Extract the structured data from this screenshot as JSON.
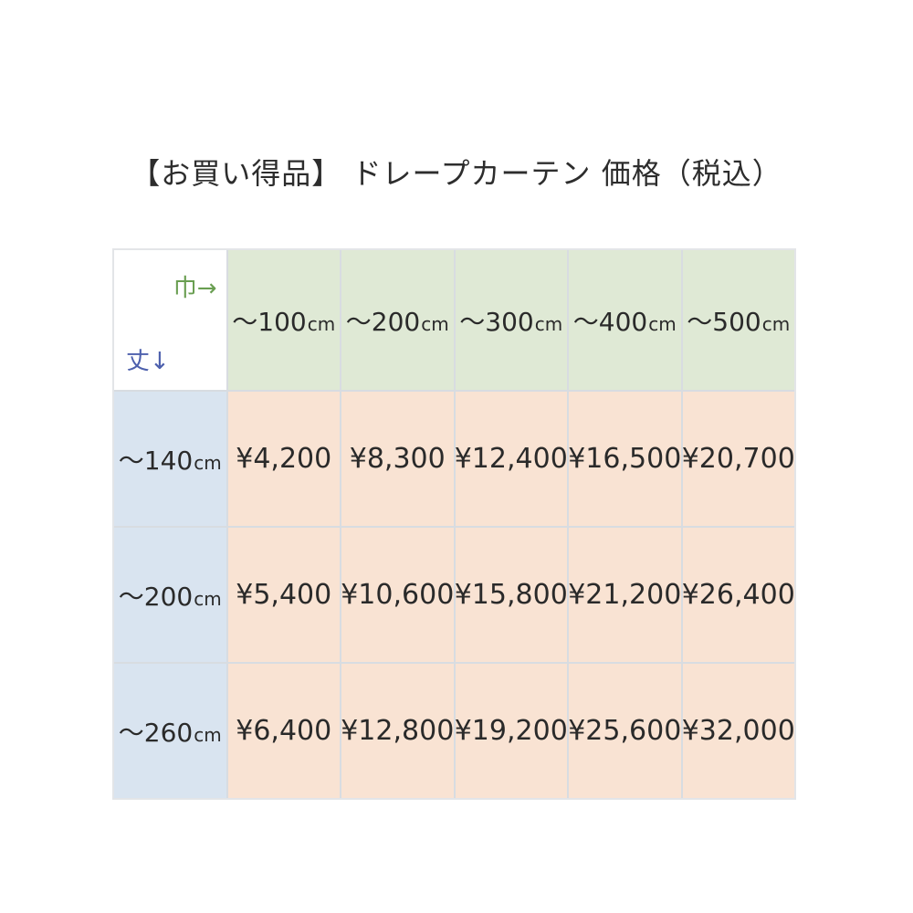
{
  "title": "【お買い得品】 ドレープカーテン 価格（税込）",
  "table": {
    "corner": {
      "width_label": "巾→",
      "height_label": "丈↓"
    },
    "col_headers": [
      {
        "range": "～100",
        "unit": "cm"
      },
      {
        "range": "～200",
        "unit": "cm"
      },
      {
        "range": "～300",
        "unit": "cm"
      },
      {
        "range": "～400",
        "unit": "cm"
      },
      {
        "range": "～500",
        "unit": "cm"
      }
    ],
    "rows": [
      {
        "label": {
          "range": "～140",
          "unit": "cm"
        },
        "prices": [
          "¥4,200",
          "¥8,300",
          "¥12,400",
          "¥16,500",
          "¥20,700"
        ]
      },
      {
        "label": {
          "range": "～200",
          "unit": "cm"
        },
        "prices": [
          "¥5,400",
          "¥10,600",
          "¥15,800",
          "¥21,200",
          "¥26,400"
        ]
      },
      {
        "label": {
          "range": "～260",
          "unit": "cm"
        },
        "prices": [
          "¥6,400",
          "¥12,800",
          "¥19,200",
          "¥25,600",
          "¥32,000"
        ]
      }
    ]
  },
  "colors": {
    "header_bg": "#dfe9d5",
    "row_label_bg": "#d9e4f0",
    "price_bg": "#f9e3d3",
    "corner_bg": "#ffffff",
    "grid_line": "#d8dce1",
    "outer_border": "#e3e5e8",
    "width_label_color": "#699e51",
    "height_label_color": "#4d60ad",
    "text_color": "#2a2a2a"
  },
  "chart_data": {
    "type": "table",
    "title": "【お買い得品】 ドレープカーテン 価格（税込）",
    "col_axis_label": "巾→",
    "row_axis_label": "丈↓",
    "columns": [
      "～100cm",
      "～200cm",
      "～300cm",
      "～400cm",
      "～500cm"
    ],
    "rows": [
      "～140cm",
      "～200cm",
      "～260cm"
    ],
    "values_yen": [
      [
        4200,
        8300,
        12400,
        16500,
        20700
      ],
      [
        5400,
        10600,
        15800,
        21200,
        26400
      ],
      [
        6400,
        12800,
        19200,
        25600,
        32000
      ]
    ],
    "currency": "JPY",
    "tax": "税込"
  }
}
